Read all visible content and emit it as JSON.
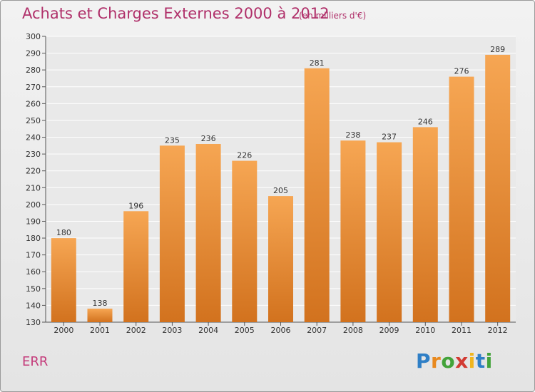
{
  "chart_data": {
    "type": "bar",
    "title": "Achats et Charges Externes 2000 à 2012",
    "subtitle": "(en milliers d'€)",
    "categories": [
      "2000",
      "2001",
      "2002",
      "2003",
      "2004",
      "2005",
      "2006",
      "2007",
      "2008",
      "2009",
      "2010",
      "2011",
      "2012"
    ],
    "values": [
      180,
      138,
      196,
      235,
      236,
      226,
      205,
      281,
      238,
      237,
      246,
      276,
      289
    ],
    "ylim": [
      130,
      300
    ],
    "yticks": [
      130,
      140,
      150,
      160,
      170,
      180,
      190,
      200,
      210,
      220,
      230,
      240,
      250,
      260,
      270,
      280,
      290,
      300
    ],
    "grid": true,
    "bar_color_top": "#f6a653",
    "bar_color_bottom": "#d2721e"
  },
  "footer": {
    "label": "ERR"
  },
  "logo": {
    "letters": [
      "P",
      "r",
      "o",
      "x",
      "i",
      "t",
      "i"
    ],
    "colors": [
      "#2f7fc6",
      "#e8891e",
      "#43a33a",
      "#d23b33",
      "#f0b51e",
      "#2f7fc6",
      "#43a33a"
    ]
  }
}
